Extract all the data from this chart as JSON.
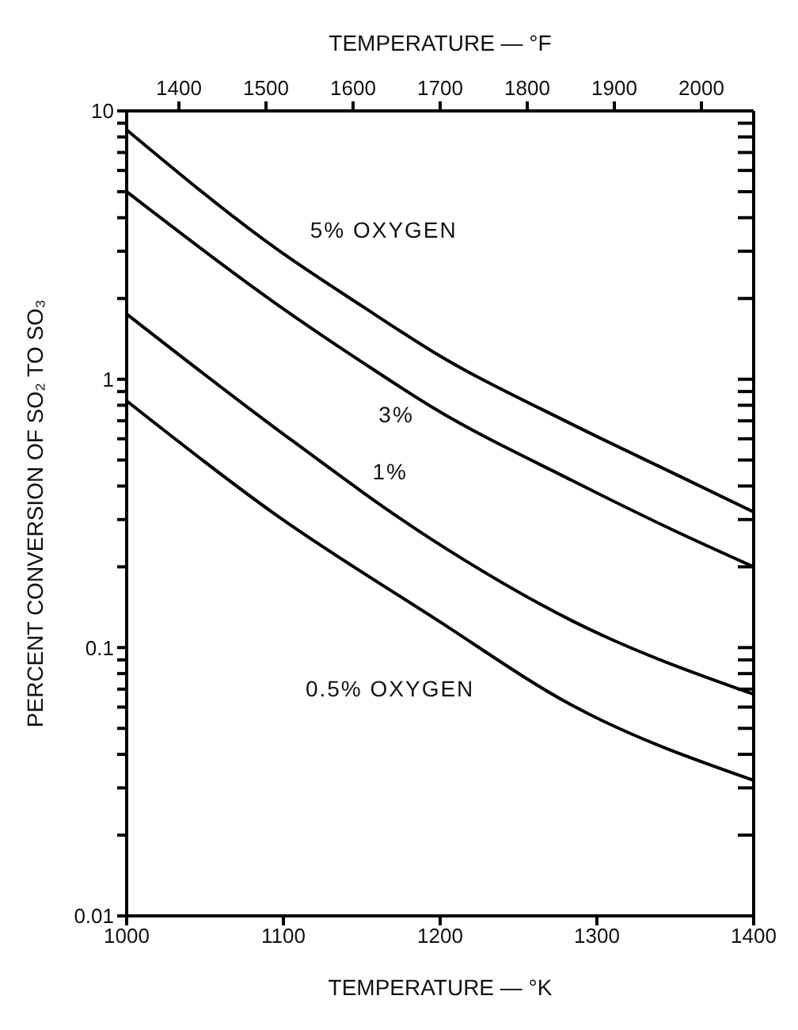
{
  "chart_data": {
    "type": "line",
    "xlabel": "TEMPERATURE — °K",
    "x2label": "TEMPERATURE — °F",
    "ylabel": "PERCENT CONVERSION OF SO₂ TO SO₃",
    "log": "y",
    "xlim": [
      1000,
      1400
    ],
    "xticks": [
      1000,
      1100,
      1200,
      1300,
      1400
    ],
    "x2lim": [
      1340,
      2060
    ],
    "x2ticks": [
      1400,
      1500,
      1600,
      1700,
      1800,
      1900,
      2000
    ],
    "ylim": [
      0.01,
      10
    ],
    "yticks": [
      0.01,
      {
        "value": 0.02,
        "label": null
      },
      {
        "value": 0.03,
        "label": null
      },
      {
        "value": 0.04,
        "label": null
      },
      {
        "value": 0.05,
        "label": null
      },
      {
        "value": 0.06,
        "label": null
      },
      {
        "value": 0.07,
        "label": null
      },
      {
        "value": 0.08,
        "label": null
      },
      {
        "value": 0.09,
        "label": null
      },
      0.1,
      {
        "value": 0.2,
        "label": null
      },
      {
        "value": 0.3,
        "label": null
      },
      {
        "value": 0.4,
        "label": null
      },
      {
        "value": 0.5,
        "label": null
      },
      {
        "value": 0.6,
        "label": null
      },
      {
        "value": 0.7,
        "label": null
      },
      {
        "value": 0.8,
        "label": null
      },
      {
        "value": 0.9,
        "label": null
      },
      1,
      {
        "value": 2,
        "label": null
      },
      {
        "value": 3,
        "label": null
      },
      {
        "value": 4,
        "label": null
      },
      {
        "value": 5,
        "label": null
      },
      {
        "value": 6,
        "label": null
      },
      {
        "value": 7,
        "label": null
      },
      {
        "value": 8,
        "label": null
      },
      {
        "value": 9,
        "label": null
      },
      10
    ],
    "grid": false,
    "marker": "none",
    "line_style": "solid",
    "series": [
      {
        "color": "#000000",
        "x": [
          1000,
          1096,
          1151,
          1196,
          1284,
          1351,
          1400
        ],
        "values": [
          8.5,
          3.05,
          1.86,
          1.26,
          0.68,
          0.44,
          0.32
        ]
      },
      {
        "color": "#000000",
        "x": [
          1000,
          1096,
          1151,
          1196,
          1284,
          1351,
          1400
        ],
        "values": [
          5.0,
          1.9,
          1.15,
          0.78,
          0.42,
          0.27,
          0.2
        ]
      },
      {
        "color": "#000000",
        "x": [
          1000,
          1096,
          1196,
          1284,
          1400
        ],
        "values": [
          1.75,
          0.65,
          0.25,
          0.126,
          0.067
        ]
      },
      {
        "color": "#000000",
        "x": [
          1000,
          1096,
          1196,
          1284,
          1400
        ],
        "values": [
          0.83,
          0.31,
          0.129,
          0.061,
          0.032
        ]
      }
    ],
    "annotations": [
      "5% OXYGEN",
      "3%",
      "1%",
      "0.5% OXYGEN"
    ]
  }
}
